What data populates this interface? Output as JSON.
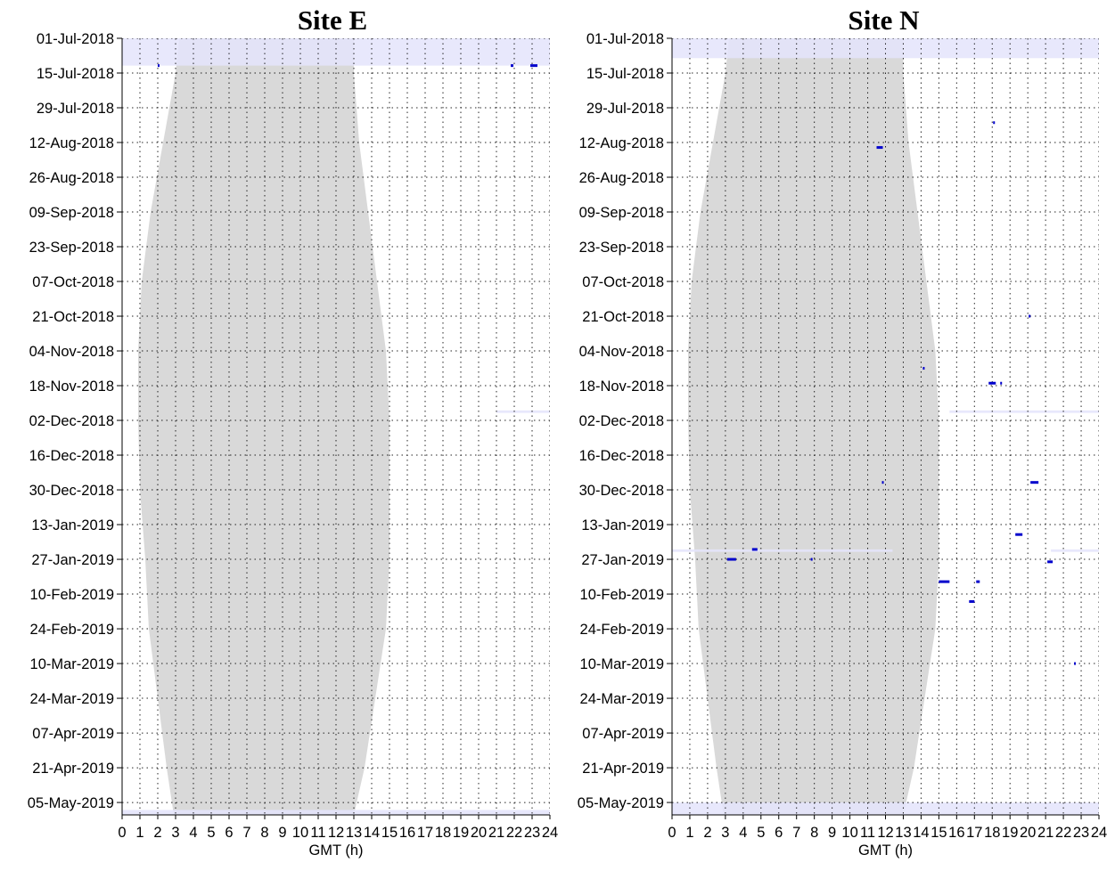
{
  "chart_data": [
    {
      "type": "scatter",
      "title": "Site E",
      "xlabel": "GMT (h)",
      "ylabel": "",
      "xlim": [
        0,
        24
      ],
      "ylim": [
        "2018-07-01",
        "2019-05-10"
      ],
      "x_ticks": [
        "0",
        "1",
        "2",
        "3",
        "4",
        "5",
        "6",
        "7",
        "8",
        "9",
        "10",
        "11",
        "12",
        "13",
        "14",
        "15",
        "16",
        "17",
        "18",
        "19",
        "20",
        "21",
        "22",
        "23",
        "24"
      ],
      "y_ticks": [
        "01-Jul-2018",
        "15-Jul-2018",
        "29-Jul-2018",
        "12-Aug-2018",
        "26-Aug-2018",
        "09-Sep-2018",
        "23-Sep-2018",
        "07-Oct-2018",
        "21-Oct-2018",
        "04-Nov-2018",
        "18-Nov-2018",
        "02-Dec-2018",
        "16-Dec-2018",
        "30-Dec-2018",
        "13-Jan-2019",
        "27-Jan-2019",
        "10-Feb-2019",
        "24-Feb-2019",
        "10-Mar-2019",
        "24-Mar-2019",
        "07-Apr-2019",
        "21-Apr-2019",
        "05-May-2019"
      ],
      "grid": true,
      "colors": {
        "night": "#d9d9d9",
        "no_effort": "#e4e4fc",
        "detection": "#0000cc"
      },
      "night_shading": [
        {
          "date": "2018-07-01",
          "start_h": 3.2,
          "end_h": 13.0
        },
        {
          "date": "2018-07-15",
          "start_h": 3.0,
          "end_h": 13.0
        },
        {
          "date": "2018-08-12",
          "start_h": 2.3,
          "end_h": 13.3
        },
        {
          "date": "2018-09-09",
          "start_h": 1.6,
          "end_h": 13.8
        },
        {
          "date": "2018-10-07",
          "start_h": 1.1,
          "end_h": 14.3
        },
        {
          "date": "2018-11-04",
          "start_h": 0.9,
          "end_h": 14.8
        },
        {
          "date": "2018-12-02",
          "start_h": 0.9,
          "end_h": 15.0
        },
        {
          "date": "2018-12-30",
          "start_h": 1.0,
          "end_h": 15.0
        },
        {
          "date": "2019-01-27",
          "start_h": 1.3,
          "end_h": 15.0
        },
        {
          "date": "2019-02-24",
          "start_h": 1.5,
          "end_h": 14.8
        },
        {
          "date": "2019-03-24",
          "start_h": 2.0,
          "end_h": 14.2
        },
        {
          "date": "2019-04-21",
          "start_h": 2.5,
          "end_h": 13.6
        },
        {
          "date": "2019-05-10",
          "start_h": 2.9,
          "end_h": 13.0
        }
      ],
      "no_effort": [
        {
          "date_start": "2018-07-01",
          "date_end": "2018-07-12",
          "start_h": 0,
          "end_h": 24
        },
        {
          "date_start": "2018-11-28",
          "date_end": "2018-11-29",
          "start_h": 21,
          "end_h": 24
        },
        {
          "date_start": "2019-05-08",
          "date_end": "2019-05-10",
          "start_h": 0,
          "end_h": 24
        }
      ],
      "detections": [
        {
          "date": "2018-07-12",
          "start_h": 2.0,
          "end_h": 2.1
        },
        {
          "date": "2018-07-12",
          "start_h": 21.8,
          "end_h": 21.95
        },
        {
          "date": "2018-07-12",
          "start_h": 22.9,
          "end_h": 23.3
        }
      ]
    },
    {
      "type": "scatter",
      "title": "Site N",
      "xlabel": "GMT (h)",
      "ylabel": "",
      "xlim": [
        0,
        24
      ],
      "ylim": [
        "2018-07-01",
        "2019-05-10"
      ],
      "x_ticks": [
        "0",
        "1",
        "2",
        "3",
        "4",
        "5",
        "6",
        "7",
        "8",
        "9",
        "10",
        "11",
        "12",
        "13",
        "14",
        "15",
        "16",
        "17",
        "18",
        "19",
        "20",
        "21",
        "22",
        "23",
        "24"
      ],
      "y_ticks": [
        "01-Jul-2018",
        "15-Jul-2018",
        "29-Jul-2018",
        "12-Aug-2018",
        "26-Aug-2018",
        "09-Sep-2018",
        "23-Sep-2018",
        "07-Oct-2018",
        "21-Oct-2018",
        "04-Nov-2018",
        "18-Nov-2018",
        "02-Dec-2018",
        "16-Dec-2018",
        "30-Dec-2018",
        "13-Jan-2019",
        "27-Jan-2019",
        "10-Feb-2019",
        "24-Feb-2019",
        "10-Mar-2019",
        "24-Mar-2019",
        "07-Apr-2019",
        "21-Apr-2019",
        "05-May-2019"
      ],
      "grid": true,
      "colors": {
        "night": "#d9d9d9",
        "no_effort": "#e4e4fc",
        "detection": "#0000cc"
      },
      "night_shading": [
        {
          "date": "2018-07-01",
          "start_h": 3.2,
          "end_h": 13.0
        },
        {
          "date": "2018-07-15",
          "start_h": 3.0,
          "end_h": 13.0
        },
        {
          "date": "2018-08-12",
          "start_h": 2.3,
          "end_h": 13.3
        },
        {
          "date": "2018-09-09",
          "start_h": 1.6,
          "end_h": 13.8
        },
        {
          "date": "2018-10-07",
          "start_h": 1.1,
          "end_h": 14.3
        },
        {
          "date": "2018-11-04",
          "start_h": 0.9,
          "end_h": 14.8
        },
        {
          "date": "2018-12-02",
          "start_h": 0.9,
          "end_h": 15.0
        },
        {
          "date": "2018-12-30",
          "start_h": 1.0,
          "end_h": 15.0
        },
        {
          "date": "2019-01-27",
          "start_h": 1.3,
          "end_h": 15.0
        },
        {
          "date": "2019-02-24",
          "start_h": 1.5,
          "end_h": 14.8
        },
        {
          "date": "2019-03-24",
          "start_h": 2.0,
          "end_h": 14.2
        },
        {
          "date": "2019-04-21",
          "start_h": 2.5,
          "end_h": 13.6
        },
        {
          "date": "2019-05-10",
          "start_h": 2.9,
          "end_h": 13.0
        }
      ],
      "no_effort": [
        {
          "date_start": "2018-07-01",
          "date_end": "2018-07-09",
          "start_h": 0,
          "end_h": 24
        },
        {
          "date_start": "2018-11-28",
          "date_end": "2018-11-29",
          "start_h": 15.6,
          "end_h": 24
        },
        {
          "date_start": "2019-01-23",
          "date_end": "2019-01-24",
          "start_h": 0,
          "end_h": 12.4
        },
        {
          "date_start": "2019-01-23",
          "date_end": "2019-01-24",
          "start_h": 21.3,
          "end_h": 24
        },
        {
          "date_start": "2019-05-05",
          "date_end": "2019-05-10",
          "start_h": 0,
          "end_h": 24
        }
      ],
      "detections": [
        {
          "date": "2018-08-04",
          "start_h": 18.05,
          "end_h": 18.12
        },
        {
          "date": "2018-08-14",
          "start_h": 11.5,
          "end_h": 11.85
        },
        {
          "date": "2018-10-21",
          "start_h": 20.05,
          "end_h": 20.12
        },
        {
          "date": "2018-11-11",
          "start_h": 14.1,
          "end_h": 14.2
        },
        {
          "date": "2018-11-17",
          "start_h": 17.8,
          "end_h": 18.2
        },
        {
          "date": "2018-11-17",
          "start_h": 18.45,
          "end_h": 18.55
        },
        {
          "date": "2018-12-27",
          "start_h": 11.8,
          "end_h": 11.9
        },
        {
          "date": "2018-12-27",
          "start_h": 20.15,
          "end_h": 20.6
        },
        {
          "date": "2019-01-17",
          "start_h": 19.3,
          "end_h": 19.7
        },
        {
          "date": "2019-01-23",
          "start_h": 4.5,
          "end_h": 4.8
        },
        {
          "date": "2019-01-27",
          "start_h": 3.1,
          "end_h": 3.6
        },
        {
          "date": "2019-01-27",
          "start_h": 7.8,
          "end_h": 7.9
        },
        {
          "date": "2019-01-28",
          "start_h": 21.1,
          "end_h": 21.4
        },
        {
          "date": "2019-02-05",
          "start_h": 15.0,
          "end_h": 15.6
        },
        {
          "date": "2019-02-05",
          "start_h": 17.1,
          "end_h": 17.3
        },
        {
          "date": "2019-02-13",
          "start_h": 16.7,
          "end_h": 17.0
        },
        {
          "date": "2019-03-10",
          "start_h": 22.6,
          "end_h": 22.7
        }
      ]
    }
  ]
}
